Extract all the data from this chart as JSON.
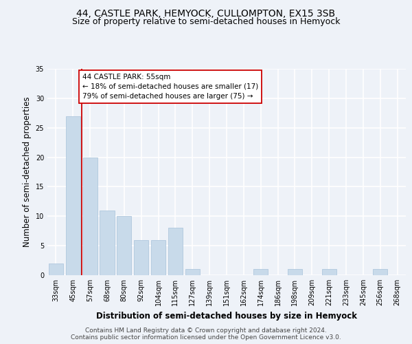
{
  "title": "44, CASTLE PARK, HEMYOCK, CULLOMPTON, EX15 3SB",
  "subtitle": "Size of property relative to semi-detached houses in Hemyock",
  "xlabel": "Distribution of semi-detached houses by size in Hemyock",
  "ylabel": "Number of semi-detached properties",
  "categories": [
    "33sqm",
    "45sqm",
    "57sqm",
    "68sqm",
    "80sqm",
    "92sqm",
    "104sqm",
    "115sqm",
    "127sqm",
    "139sqm",
    "151sqm",
    "162sqm",
    "174sqm",
    "186sqm",
    "198sqm",
    "209sqm",
    "221sqm",
    "233sqm",
    "245sqm",
    "256sqm",
    "268sqm"
  ],
  "values": [
    2,
    27,
    20,
    11,
    10,
    6,
    6,
    8,
    1,
    0,
    0,
    0,
    1,
    0,
    1,
    0,
    1,
    0,
    0,
    1,
    0
  ],
  "bar_color": "#c8daea",
  "bar_edge_color": "#b0c8de",
  "highlight_line_color": "#cc0000",
  "annotation_text": "44 CASTLE PARK: 55sqm\n← 18% of semi-detached houses are smaller (17)\n79% of semi-detached houses are larger (75) →",
  "annotation_box_color": "#ffffff",
  "annotation_box_edge": "#cc0000",
  "ylim": [
    0,
    35
  ],
  "yticks": [
    0,
    5,
    10,
    15,
    20,
    25,
    30,
    35
  ],
  "footer": "Contains HM Land Registry data © Crown copyright and database right 2024.\nContains public sector information licensed under the Open Government Licence v3.0.",
  "background_color": "#eef2f8",
  "grid_color": "#ffffff",
  "title_fontsize": 10,
  "subtitle_fontsize": 9,
  "axis_label_fontsize": 8.5,
  "tick_fontsize": 7,
  "footer_fontsize": 6.5,
  "annotation_fontsize": 7.5
}
